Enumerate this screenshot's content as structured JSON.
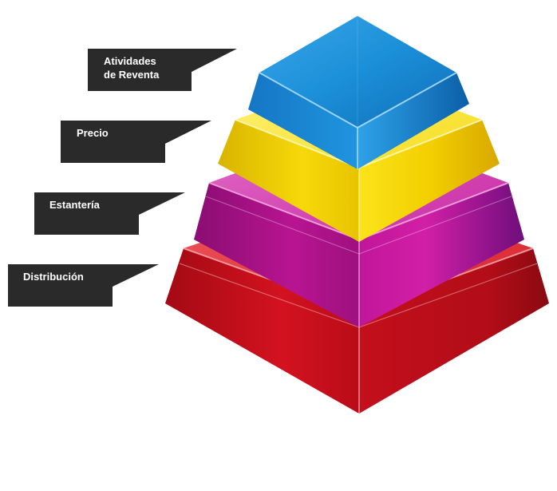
{
  "colors": {
    "label_bg": "#2a2a2a",
    "label_text": "#ffffff",
    "tier_top": "#1b8fd8",
    "tier_2": "#f2d000",
    "tier_3": "#b10f8a",
    "tier_bottom": "#c7101c"
  },
  "labels": [
    {
      "id": "actividades",
      "lines": [
        "Atividades",
        "de Reventa"
      ]
    },
    {
      "id": "precio",
      "lines": [
        "Precio"
      ]
    },
    {
      "id": "estanteria",
      "lines": [
        "Estantería"
      ]
    },
    {
      "id": "distribucion",
      "lines": [
        "Distribución"
      ]
    }
  ]
}
